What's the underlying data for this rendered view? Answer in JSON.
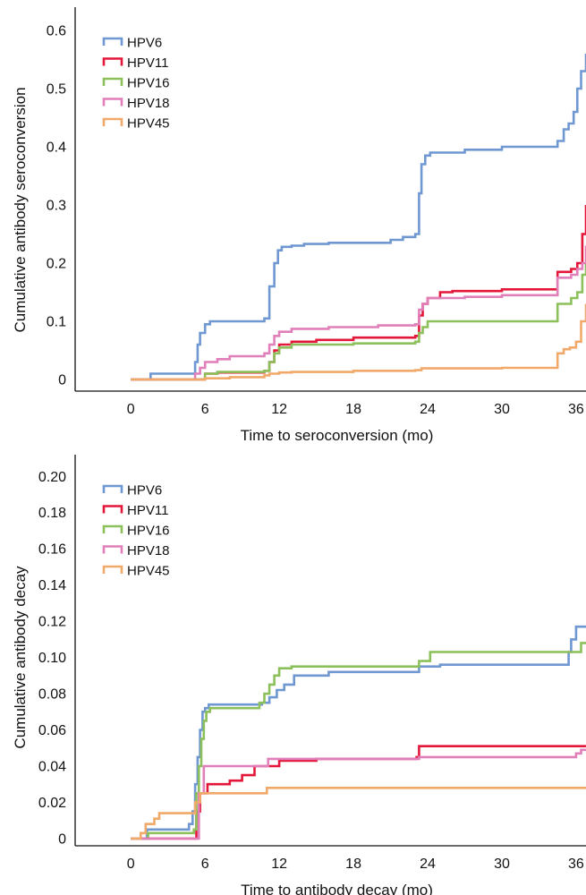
{
  "chart_data": [
    {
      "type": "line",
      "step": true,
      "xlabel": "Time to seroconversion (mo)",
      "ylabel": "Cumulative antibody seroconversion",
      "xlim": [
        -4.5,
        36.8
      ],
      "ylim": [
        -0.02,
        0.64
      ],
      "xticks": [
        0,
        6,
        12,
        18,
        24,
        30,
        36
      ],
      "yticks": [
        0,
        0.1,
        0.2,
        0.3,
        0.4,
        0.5,
        0.6
      ],
      "ytick_labels": [
        "0",
        "0.1",
        "0.2",
        "0.3",
        "0.4",
        "0.5",
        "0.6"
      ],
      "legend_position": "top-left",
      "grid": false,
      "series": [
        {
          "name": "HPV6",
          "color": "#6f97d1",
          "x": [
            0,
            1,
            1.6,
            5,
            5.2,
            5.4,
            5.6,
            6,
            6.4,
            7,
            10.8,
            11.2,
            11.6,
            11.9,
            12.2,
            13,
            14,
            16,
            21,
            22,
            23,
            23.3,
            23.5,
            23.8,
            24.2,
            25,
            27,
            30,
            34.5,
            35,
            35.4,
            35.8,
            36.1,
            36.4,
            36.8
          ],
          "y": [
            0,
            0,
            0.01,
            0.01,
            0.03,
            0.06,
            0.08,
            0.095,
            0.1,
            0.1,
            0.105,
            0.16,
            0.2,
            0.222,
            0.228,
            0.23,
            0.233,
            0.235,
            0.24,
            0.245,
            0.25,
            0.32,
            0.37,
            0.385,
            0.39,
            0.39,
            0.395,
            0.4,
            0.41,
            0.43,
            0.44,
            0.46,
            0.5,
            0.53,
            0.56
          ]
        },
        {
          "name": "HPV11",
          "color": "#e3173a",
          "x": [
            0,
            1,
            5.2,
            6,
            7,
            10.8,
            11.2,
            11.6,
            12,
            13,
            15,
            18,
            23,
            23.3,
            23.6,
            24,
            25,
            26,
            30,
            34.5,
            35.6,
            36.1,
            36.5,
            36.8
          ],
          "y": [
            0,
            0,
            0,
            0.01,
            0.012,
            0.015,
            0.03,
            0.05,
            0.06,
            0.065,
            0.068,
            0.072,
            0.075,
            0.11,
            0.13,
            0.14,
            0.15,
            0.152,
            0.155,
            0.185,
            0.19,
            0.2,
            0.25,
            0.3
          ]
        },
        {
          "name": "HPV16",
          "color": "#8bc05a",
          "x": [
            0,
            5.5,
            6,
            7,
            10.8,
            11.2,
            11.6,
            12,
            13,
            18,
            23,
            23.3,
            23.6,
            24,
            28,
            34.5,
            35.6,
            36.1,
            36.5,
            36.8
          ],
          "y": [
            0,
            0,
            0.01,
            0.013,
            0.015,
            0.03,
            0.045,
            0.055,
            0.06,
            0.062,
            0.065,
            0.08,
            0.09,
            0.1,
            0.1,
            0.13,
            0.14,
            0.15,
            0.18,
            0.2
          ]
        },
        {
          "name": "HPV18",
          "color": "#e07fb9",
          "x": [
            0,
            4.8,
            5.2,
            5.6,
            6,
            7,
            8,
            10.8,
            11.2,
            11.6,
            12,
            13,
            16,
            20,
            23,
            23.3,
            23.6,
            24,
            27,
            30,
            34.5,
            35.6,
            36.1,
            36.5,
            36.8
          ],
          "y": [
            0,
            0,
            0.01,
            0.02,
            0.03,
            0.035,
            0.04,
            0.045,
            0.06,
            0.075,
            0.082,
            0.087,
            0.09,
            0.093,
            0.095,
            0.12,
            0.13,
            0.14,
            0.142,
            0.145,
            0.175,
            0.18,
            0.19,
            0.2,
            0.23
          ]
        },
        {
          "name": "HPV45",
          "color": "#f1a96a",
          "x": [
            0,
            5.2,
            6,
            8,
            10.8,
            11.2,
            12,
            13,
            18,
            23,
            23.5,
            30,
            34.5,
            35,
            35.5,
            36,
            36.4,
            36.8
          ],
          "y": [
            0,
            0,
            0.002,
            0.004,
            0.007,
            0.01,
            0.012,
            0.013,
            0.015,
            0.016,
            0.019,
            0.02,
            0.045,
            0.052,
            0.055,
            0.065,
            0.1,
            0.13
          ]
        }
      ]
    },
    {
      "type": "line",
      "step": true,
      "xlabel": "Time to antibody decay (mo)",
      "ylabel": "Cumulative antibody decay",
      "xlim": [
        -4.5,
        36.8
      ],
      "ylim": [
        -0.004,
        0.212
      ],
      "xticks": [
        0,
        6,
        12,
        18,
        24,
        30,
        36
      ],
      "yticks": [
        0,
        0.02,
        0.04,
        0.06,
        0.08,
        0.1,
        0.12,
        0.14,
        0.16,
        0.18,
        0.2
      ],
      "ytick_labels": [
        "0",
        "0.02",
        "0.04",
        "0.06",
        "0.08",
        "0.10",
        "0.12",
        "0.14",
        "0.16",
        "0.18",
        "0.20"
      ],
      "legend_position": "top-left",
      "grid": false,
      "series": [
        {
          "name": "HPV6",
          "color": "#6f97d1",
          "x": [
            0,
            1,
            1.3,
            4.7,
            5,
            5.2,
            5.4,
            5.6,
            5.8,
            6,
            6.3,
            10.6,
            11.2,
            11.8,
            12.4,
            13.2,
            16,
            23.3,
            25,
            35.4,
            35.6,
            36,
            36.8
          ],
          "y": [
            0,
            0,
            0.005,
            0.008,
            0.015,
            0.03,
            0.045,
            0.06,
            0.07,
            0.072,
            0.074,
            0.075,
            0.078,
            0.082,
            0.085,
            0.09,
            0.092,
            0.095,
            0.096,
            0.103,
            0.11,
            0.117,
            0.117
          ]
        },
        {
          "name": "HPV11",
          "color": "#e3173a",
          "x": [
            0,
            5,
            5.3,
            5.6,
            6.2,
            8,
            9,
            10,
            12,
            15,
            23.1,
            23.3,
            36.8
          ],
          "y": [
            0,
            0,
            0.015,
            0.025,
            0.03,
            0.032,
            0.035,
            0.04,
            0.043,
            0.044,
            0.045,
            0.051,
            0.051
          ]
        },
        {
          "name": "HPV16",
          "color": "#8bc05a",
          "x": [
            0,
            1.4,
            5.1,
            5.3,
            5.5,
            5.7,
            5.9,
            6.1,
            6.4,
            10.4,
            10.8,
            11.2,
            11.6,
            12,
            13,
            18,
            23.3,
            24.2,
            36,
            36.4,
            36.8
          ],
          "y": [
            0,
            0.003,
            0.005,
            0.025,
            0.04,
            0.055,
            0.065,
            0.07,
            0.072,
            0.075,
            0.08,
            0.085,
            0.09,
            0.094,
            0.095,
            0.095,
            0.098,
            0.103,
            0.103,
            0.108,
            0.108
          ]
        },
        {
          "name": "HPV18",
          "color": "#e07fb9",
          "x": [
            0,
            5.2,
            5.5,
            5.9,
            7.5,
            10.7,
            11.1,
            12,
            23.3,
            36,
            36.4,
            36.8
          ],
          "y": [
            0,
            0,
            0.025,
            0.04,
            0.04,
            0.04,
            0.044,
            0.044,
            0.045,
            0.047,
            0.049,
            0.049
          ]
        },
        {
          "name": "HPV45",
          "color": "#f1a96a",
          "x": [
            0,
            0.8,
            1.2,
            1.9,
            2.3,
            3,
            5.2,
            5.6,
            10.8,
            11,
            36.8
          ],
          "y": [
            0,
            0.003,
            0.008,
            0.011,
            0.014,
            0.014,
            0.02,
            0.025,
            0.025,
            0.028,
            0.028
          ]
        }
      ]
    }
  ]
}
